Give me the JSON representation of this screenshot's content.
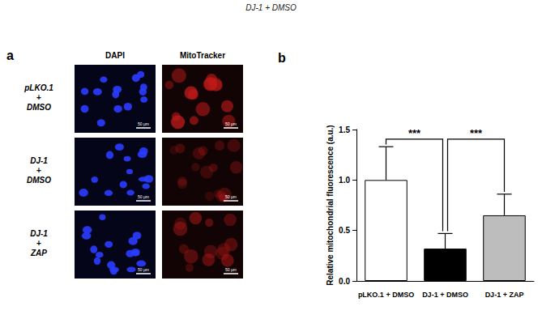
{
  "header": "DJ-1 + DMSO",
  "panel_a": {
    "label": "a",
    "columns": [
      "DAPI",
      "MitoTracker"
    ],
    "rows": [
      "pLKO.1 + DMSO",
      "DJ-1 + DMSO",
      "DJ-1 + ZAP"
    ],
    "scale_bar": "50 µm"
  },
  "chart_data": {
    "type": "bar",
    "panel_label": "b",
    "categories": [
      "pLKO.1 + DMSO",
      "DJ-1 + DMSO",
      "DJ-1 + ZAP"
    ],
    "values": [
      1.0,
      0.32,
      0.65
    ],
    "errors": [
      0.33,
      0.15,
      0.21
    ],
    "colors": [
      "#ffffff",
      "#000000",
      "#bdbdbd"
    ],
    "y_label": "Relative mitochondrial fluorescence (a.u.)",
    "ylim": [
      0,
      1.5
    ],
    "yticks": [
      {
        "value": 0,
        "label": "0.0"
      },
      {
        "value": 0.5,
        "label": "0.5"
      },
      {
        "value": 1,
        "label": "1.0"
      },
      {
        "value": 1.5,
        "label": "1.5"
      }
    ],
    "grid": false,
    "significance": [
      {
        "between": [
          0,
          1
        ],
        "label": "***"
      },
      {
        "between": [
          1,
          2
        ],
        "label": "***"
      }
    ]
  }
}
